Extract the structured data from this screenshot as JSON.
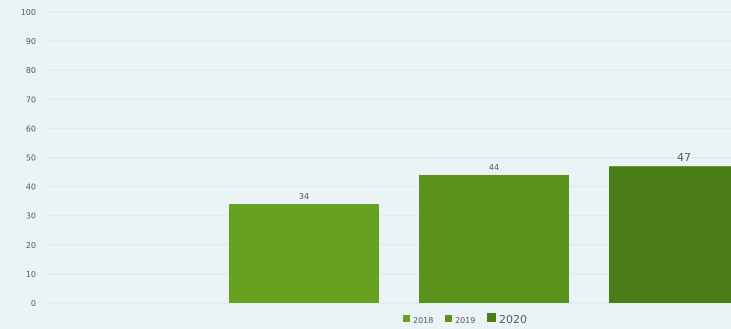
{
  "chart_data": {
    "type": "bar",
    "categories": [
      "",
      "",
      "",
      ""
    ],
    "series": [
      {
        "name": "",
        "values": [
          null,
          null,
          null,
          null
        ]
      },
      {
        "name": "2018",
        "values": [
          null,
          34,
          null,
          null
        ]
      },
      {
        "name": "2019",
        "values": [
          null,
          null,
          44,
          null
        ]
      },
      {
        "name": "2020",
        "values": [
          null,
          null,
          null,
          47
        ]
      }
    ],
    "data_labels": [
      "34",
      "44",
      "47"
    ],
    "yticks": [
      "0",
      "10",
      "20",
      "30",
      "40",
      "50",
      "60",
      "70",
      "80",
      "90",
      "100"
    ],
    "ylim": [
      0,
      100
    ],
    "grid": true,
    "legend": {
      "placement": "bottom",
      "entries": [
        "2018",
        "2019",
        "2020"
      ]
    },
    "colors": {
      "2018": "#66a11f",
      "2019": "#5a931c",
      "2020": "#4b7d16",
      "grid": "#dde7ec",
      "text": "#595959"
    }
  }
}
